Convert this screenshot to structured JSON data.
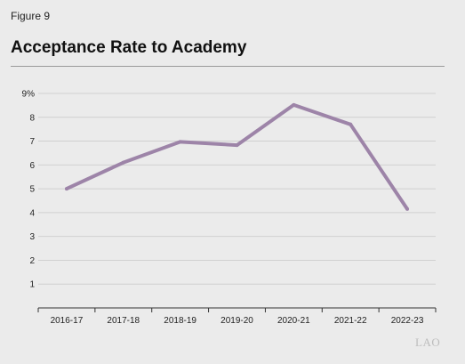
{
  "header": {
    "figure_label": "Figure 9",
    "title": "Acceptance Rate to Academy"
  },
  "colors": {
    "background": "#ebebeb",
    "line": "#9d84a8",
    "gridline": "#d0d0d0",
    "axis": "#333333",
    "text": "#222222"
  },
  "chart_data": {
    "type": "line",
    "title": "Acceptance Rate to Academy",
    "xlabel": "",
    "ylabel": "",
    "categories": [
      "2016-17",
      "2017-18",
      "2018-19",
      "2019-20",
      "2020-21",
      "2021-22",
      "2022-23"
    ],
    "series": [
      {
        "values": [
          5.0,
          6.1,
          6.97,
          6.83,
          8.52,
          7.7,
          4.15
        ]
      }
    ],
    "ylim": [
      0,
      9
    ],
    "yticks": [
      "",
      "1",
      "2",
      "3",
      "4",
      "5",
      "6",
      "7",
      "8",
      "9%"
    ],
    "grid": true,
    "legend": "none"
  },
  "footer": {
    "watermark": "LAO"
  }
}
